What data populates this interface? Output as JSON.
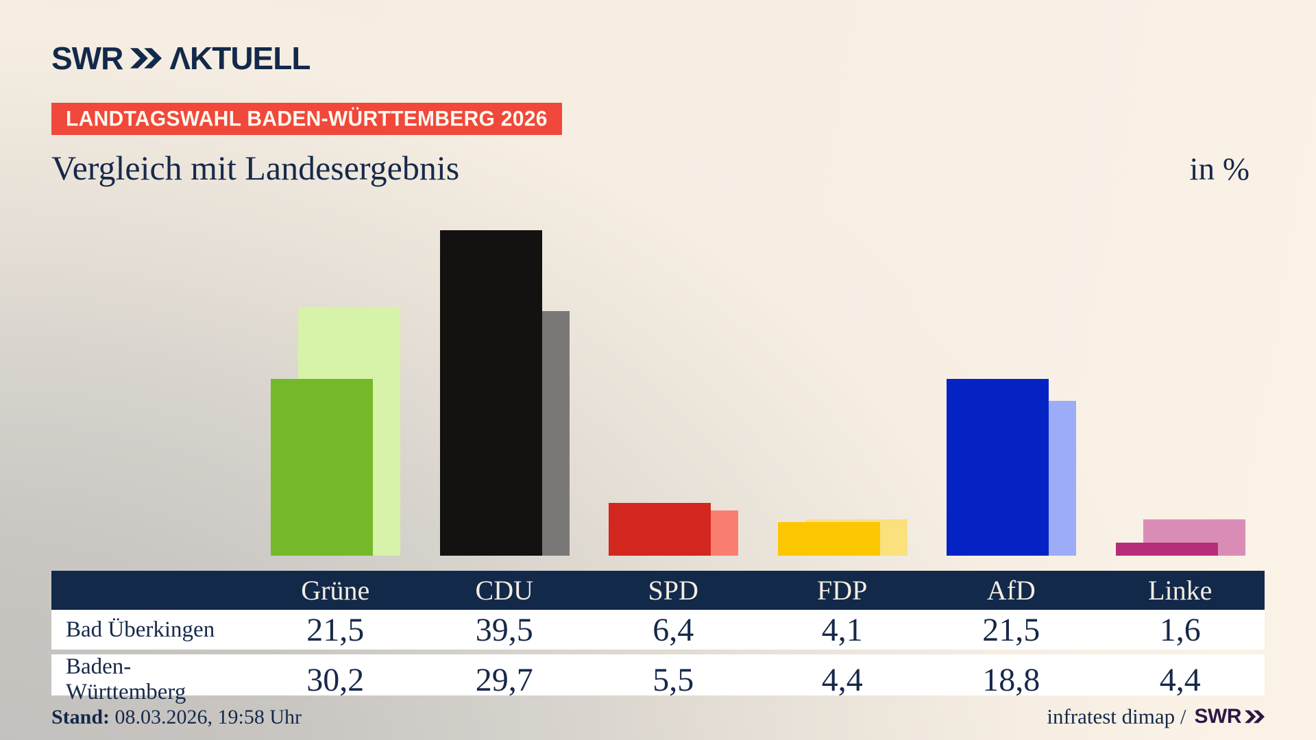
{
  "brand": {
    "name": "SWR AKTUELL",
    "swr": "SWR",
    "aktuell": "ΛKTUELL",
    "navy": "#12294a"
  },
  "banner": {
    "label": "LANDTAGSWAHL BADEN-WÜRTTEMBERG 2026",
    "bg": "#f0483a"
  },
  "title": "Vergleich mit Landesergebnis",
  "unit_label": "in %",
  "chart_data": {
    "type": "bar",
    "categories": [
      "Grüne",
      "CDU",
      "SPD",
      "FDP",
      "AfD",
      "Linke"
    ],
    "series": [
      {
        "name": "Bad Überkingen",
        "values": [
          21.5,
          39.5,
          6.4,
          4.1,
          21.5,
          1.6
        ]
      },
      {
        "name": "Baden-Württemberg",
        "values": [
          30.2,
          29.7,
          5.5,
          4.4,
          18.8,
          4.4
        ]
      }
    ],
    "colors": {
      "municipality": [
        "#75b92b",
        "#141210",
        "#d2261f",
        "#fcc600",
        "#0523c5",
        "#b62d79"
      ],
      "state": [
        "#d6f3a9",
        "#7a7877",
        "#f97e6f",
        "#fbe07e",
        "#9cacf8",
        "#d98db6"
      ]
    },
    "title": "Vergleich mit Landesergebnis",
    "xlabel": "",
    "ylabel": "in %",
    "ylim": [
      0,
      40
    ],
    "grid": false,
    "legend": "none"
  },
  "table": {
    "columns": [
      "Grüne",
      "CDU",
      "SPD",
      "FDP",
      "AfD",
      "Linke"
    ],
    "row_labels": [
      "Bad Überkingen",
      "Baden-Württemberg"
    ],
    "rows": [
      [
        "21,5",
        "39,5",
        "6,4",
        "4,1",
        "21,5",
        "1,6"
      ],
      [
        "30,2",
        "29,7",
        "5,5",
        "4,4",
        "18,8",
        "4,4"
      ]
    ],
    "header_bg": "#12294a"
  },
  "footer": {
    "stand_label": "Stand:",
    "stand_value": "08.03.2026, 19:58 Uhr",
    "source_text": "infratest dimap /",
    "source_logo": "SWR"
  }
}
